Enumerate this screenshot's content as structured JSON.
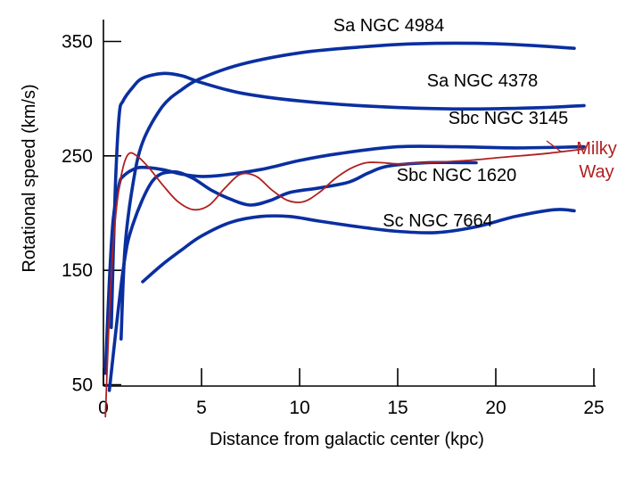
{
  "chart_data": {
    "type": "line",
    "title": "",
    "xlabel": "Distance from galactic center (kpc)",
    "ylabel": "Rotational speed (km/s)",
    "xlim": [
      0,
      25
    ],
    "ylim": [
      0,
      380
    ],
    "xticks": [
      0,
      5,
      10,
      15,
      20,
      25
    ],
    "yticks": [
      50,
      150,
      250,
      350
    ],
    "grid": false,
    "legend": "none",
    "series": [
      {
        "name": "Sa NGC 4984",
        "color": "#0a2fa0",
        "x": [
          0.9,
          1.1,
          1.5,
          2.0,
          3.0,
          4.0,
          5.0,
          7.0,
          10.0,
          13.0,
          16.0,
          20.0,
          24.0
        ],
        "y": [
          90,
          170,
          225,
          262,
          293,
          308,
          318,
          330,
          340,
          345,
          348,
          348,
          344
        ]
      },
      {
        "name": "Sa NGC 4378",
        "color": "#0a2fa0",
        "x": [
          0.4,
          0.6,
          0.8,
          1.0,
          1.5,
          2.0,
          3.0,
          4.0,
          5.0,
          7.0,
          10.0,
          14.0,
          18.0,
          22.0,
          24.5
        ],
        "y": [
          100,
          220,
          285,
          298,
          310,
          318,
          322,
          320,
          314,
          305,
          298,
          293,
          291,
          292,
          294
        ]
      },
      {
        "name": "Sbc NGC 3145",
        "color": "#0a2fa0",
        "x": [
          0.1,
          0.3,
          0.5,
          0.8,
          1.0,
          1.5,
          2.0,
          3.0,
          4.0,
          5.0,
          6.0,
          8.0,
          10.0,
          12.0,
          15.0,
          18.0,
          21.0,
          24.5
        ],
        "y": [
          60,
          140,
          195,
          225,
          232,
          238,
          240,
          238,
          234,
          232,
          233,
          238,
          246,
          252,
          258,
          258,
          257,
          258
        ]
      },
      {
        "name": "Sbc NGC 1620",
        "color": "#0a2fa0",
        "x": [
          0.3,
          1.0,
          1.5,
          2.5,
          3.5,
          4.5,
          5.5,
          6.5,
          7.5,
          8.5,
          9.5,
          11.0,
          12.5,
          13.5,
          14.5,
          16.5,
          19.0
        ],
        "y": [
          45,
          150,
          190,
          228,
          236,
          231,
          220,
          212,
          207,
          211,
          218,
          222,
          227,
          235,
          241,
          244,
          244
        ]
      },
      {
        "name": "Sc NGC 7664",
        "color": "#0a2fa0",
        "x": [
          2.0,
          3.0,
          4.0,
          5.0,
          6.5,
          8.0,
          9.5,
          11.0,
          13.0,
          15.0,
          17.0,
          19.0,
          21.0,
          23.0,
          24.0
        ],
        "y": [
          140,
          155,
          168,
          180,
          192,
          197,
          197,
          193,
          188,
          184,
          183,
          188,
          197,
          203,
          202
        ]
      },
      {
        "name": "Milky Way",
        "label_lines": [
          "Milky",
          "Way"
        ],
        "color": "#b02020",
        "x": [
          0.1,
          0.25,
          0.45,
          0.7,
          1.0,
          1.3,
          1.7,
          2.3,
          3.0,
          3.8,
          4.6,
          5.4,
          6.2,
          7.0,
          7.8,
          8.6,
          9.4,
          10.2,
          11.0,
          11.8,
          12.6,
          13.4,
          14.2,
          15.0,
          16.5,
          18.5,
          20.5,
          22.5,
          24.5
        ],
        "y": [
          22,
          90,
          160,
          210,
          240,
          252,
          250,
          240,
          225,
          210,
          203,
          207,
          222,
          234,
          232,
          220,
          211,
          210,
          218,
          230,
          239,
          244,
          244,
          243,
          244,
          246,
          249,
          252,
          256
        ]
      }
    ]
  }
}
